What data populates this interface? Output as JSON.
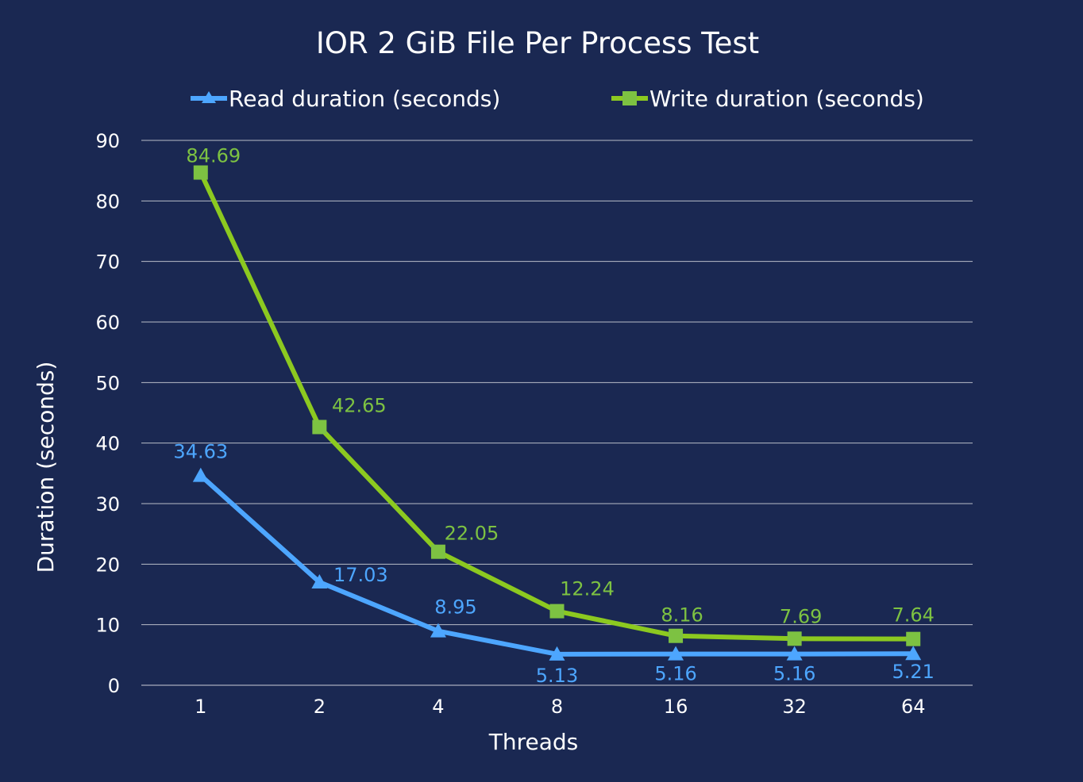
{
  "chart_data": {
    "type": "line",
    "title": "IOR 2 GiB File Per Process Test",
    "xlabel": "Threads",
    "ylabel": "Duration (seconds)",
    "categories": [
      "1",
      "2",
      "4",
      "8",
      "16",
      "32",
      "64"
    ],
    "ylim": [
      0,
      90
    ],
    "yticks": [
      0,
      10,
      20,
      30,
      40,
      50,
      60,
      70,
      80,
      90
    ],
    "grid": true,
    "legend_position": "top",
    "series": [
      {
        "name": "Read duration (seconds)",
        "color": "#4da6ff",
        "marker": "triangle",
        "values": [
          34.63,
          17.03,
          8.95,
          5.13,
          5.16,
          5.16,
          5.21
        ],
        "labels": [
          "34.63",
          "17.03",
          "8.95",
          "5.13",
          "5.16",
          "5.16",
          "5.21"
        ]
      },
      {
        "name": "Write duration (seconds)",
        "color": "#7dc242",
        "line_color": "#8cc920",
        "marker": "square",
        "values": [
          84.69,
          42.65,
          22.05,
          12.24,
          8.16,
          7.69,
          7.64
        ],
        "labels": [
          "84.69",
          "42.65",
          "22.05",
          "12.24",
          "8.16",
          "7.69",
          "7.64"
        ]
      }
    ]
  }
}
